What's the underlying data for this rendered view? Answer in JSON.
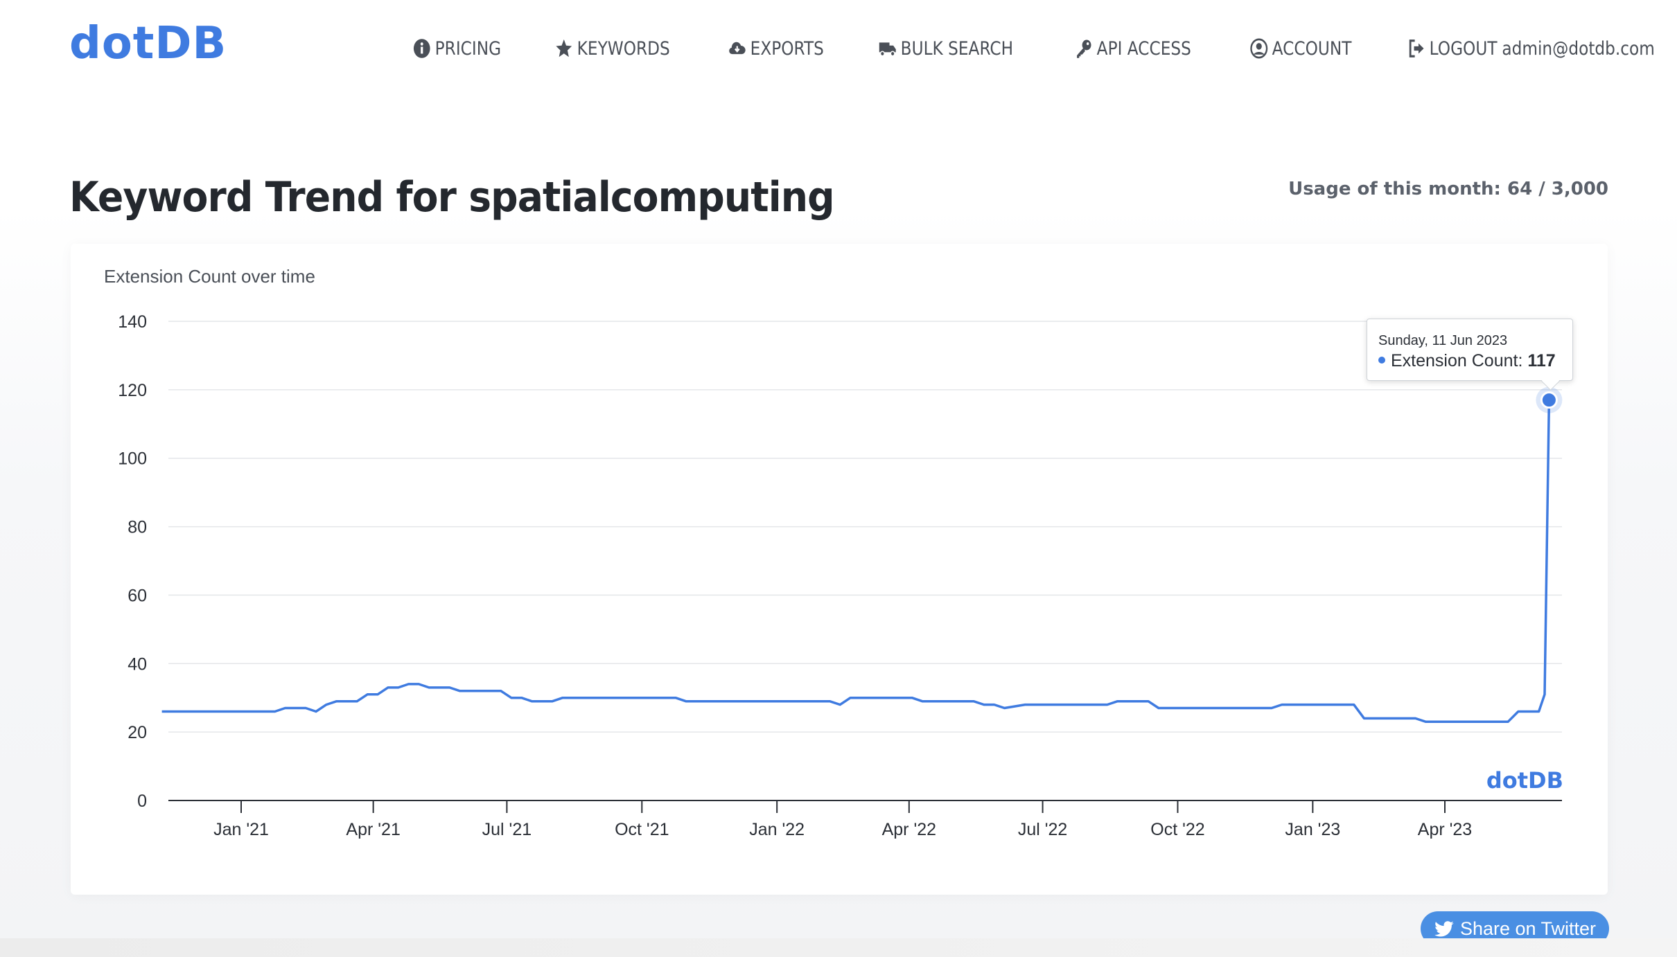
{
  "brand": {
    "logo": "dotDB",
    "accent": "#3f7be0"
  },
  "nav": {
    "items": [
      {
        "label": "PRICING",
        "icon": "info-circle-icon"
      },
      {
        "label": "KEYWORDS",
        "icon": "star-icon"
      },
      {
        "label": "EXPORTS",
        "icon": "cloud-download-icon"
      },
      {
        "label": "BULK SEARCH",
        "icon": "truck-icon"
      },
      {
        "label": "API ACCESS",
        "icon": "key-icon"
      },
      {
        "label": "ACCOUNT",
        "icon": "user-circle-icon"
      }
    ],
    "logout_label": "LOGOUT",
    "logout_email": "admin@dotdb.com"
  },
  "page": {
    "title": "Keyword Trend for spatialcomputing",
    "usage": "Usage of this month: 64 / 3,000"
  },
  "chart": {
    "watermark": "dotDB",
    "tooltip": {
      "date": "Sunday, 11 Jun 2023",
      "series_label": "Extension Count: ",
      "value": "117"
    }
  },
  "chart_data": {
    "type": "line",
    "title": "Extension Count over time",
    "xlabel": "",
    "ylabel": "",
    "ylim": [
      0,
      140
    ],
    "y_ticks": [
      0,
      20,
      40,
      60,
      80,
      100,
      120,
      140
    ],
    "x_ticks": [
      {
        "label": "Jan '21",
        "date": "2021-01-01"
      },
      {
        "label": "Apr '21",
        "date": "2021-04-01"
      },
      {
        "label": "Jul '21",
        "date": "2021-07-01"
      },
      {
        "label": "Oct '21",
        "date": "2021-10-01"
      },
      {
        "label": "Jan '22",
        "date": "2022-01-01"
      },
      {
        "label": "Apr '22",
        "date": "2022-04-01"
      },
      {
        "label": "Jul '22",
        "date": "2022-07-01"
      },
      {
        "label": "Oct '22",
        "date": "2022-10-01"
      },
      {
        "label": "Jan '23",
        "date": "2023-01-01"
      },
      {
        "label": "Apr '23",
        "date": "2023-04-01"
      }
    ],
    "grid": true,
    "legend": "none",
    "color": "#3f7be0",
    "series": [
      {
        "points": [
          [
            "2020-11-08",
            26
          ],
          [
            "2020-12-06",
            26
          ],
          [
            "2021-01-03",
            26
          ],
          [
            "2021-01-24",
            26
          ],
          [
            "2021-01-31",
            27
          ],
          [
            "2021-02-14",
            27
          ],
          [
            "2021-02-21",
            26
          ],
          [
            "2021-02-28",
            28
          ],
          [
            "2021-03-07",
            29
          ],
          [
            "2021-03-21",
            29
          ],
          [
            "2021-03-28",
            31
          ],
          [
            "2021-04-04",
            31
          ],
          [
            "2021-04-11",
            33
          ],
          [
            "2021-04-18",
            33
          ],
          [
            "2021-04-25",
            34
          ],
          [
            "2021-05-02",
            34
          ],
          [
            "2021-05-09",
            33
          ],
          [
            "2021-05-23",
            33
          ],
          [
            "2021-05-30",
            32
          ],
          [
            "2021-06-27",
            32
          ],
          [
            "2021-07-04",
            30
          ],
          [
            "2021-07-11",
            30
          ],
          [
            "2021-07-18",
            29
          ],
          [
            "2021-08-01",
            29
          ],
          [
            "2021-08-08",
            30
          ],
          [
            "2021-10-24",
            30
          ],
          [
            "2021-10-31",
            29
          ],
          [
            "2022-02-06",
            29
          ],
          [
            "2022-02-13",
            28
          ],
          [
            "2022-02-20",
            30
          ],
          [
            "2022-04-03",
            30
          ],
          [
            "2022-04-10",
            29
          ],
          [
            "2022-05-15",
            29
          ],
          [
            "2022-05-22",
            28
          ],
          [
            "2022-05-29",
            28
          ],
          [
            "2022-06-05",
            27
          ],
          [
            "2022-06-19",
            28
          ],
          [
            "2022-08-14",
            28
          ],
          [
            "2022-08-21",
            29
          ],
          [
            "2022-09-11",
            29
          ],
          [
            "2022-09-18",
            27
          ],
          [
            "2022-12-04",
            27
          ],
          [
            "2022-12-11",
            28
          ],
          [
            "2023-01-29",
            28
          ],
          [
            "2023-02-05",
            24
          ],
          [
            "2023-03-12",
            24
          ],
          [
            "2023-03-19",
            23
          ],
          [
            "2023-05-14",
            23
          ],
          [
            "2023-05-21",
            26
          ],
          [
            "2023-06-04",
            26
          ],
          [
            "2023-06-08",
            31
          ],
          [
            "2023-06-11",
            117
          ]
        ]
      }
    ],
    "highlight": {
      "date": "2023-06-11",
      "value": 117
    }
  },
  "share": {
    "label": "Share on Twitter",
    "icon": "twitter-icon",
    "color": "#4a8fe3"
  }
}
